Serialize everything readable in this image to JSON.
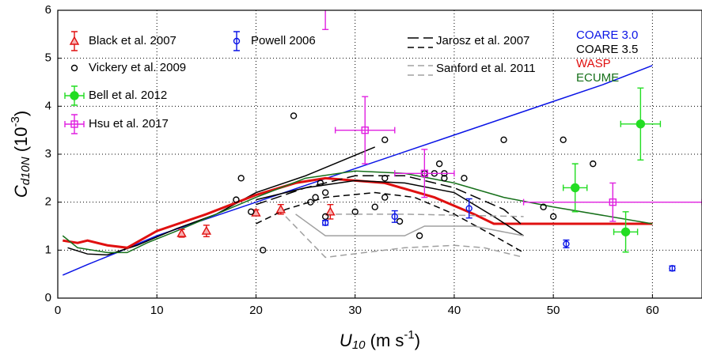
{
  "chart_data": {
    "type": "line",
    "xlabel": {
      "main": "U",
      "sub": "10",
      "unit": " (m s",
      "sup": "-1",
      "close": ")"
    },
    "ylabel": {
      "main": "C",
      "sub": "d10N",
      "unit": " (10",
      "sup": "-3",
      "close": ")"
    },
    "xlim": [
      0,
      65
    ],
    "ylim": [
      0,
      6
    ],
    "xticks": [
      0,
      10,
      20,
      30,
      40,
      50,
      60
    ],
    "yticks": [
      0,
      1,
      2,
      3,
      4,
      5,
      6
    ],
    "grid": true,
    "series": [
      {
        "name": "COARE 3.0",
        "color": "#0a14e6",
        "mark": "line",
        "dash": "solid",
        "x": [
          0.5,
          3,
          6,
          10,
          15,
          20,
          25,
          30,
          35,
          40,
          45,
          50,
          55,
          60
        ],
        "values": [
          0.48,
          0.7,
          0.95,
          1.3,
          1.65,
          2.0,
          2.35,
          2.7,
          3.05,
          3.4,
          3.75,
          4.1,
          4.45,
          4.85
        ]
      },
      {
        "name": "COARE 3.5",
        "color": "#000000",
        "mark": "line",
        "dash": "solid",
        "x": [
          1,
          3,
          5,
          8,
          12,
          16,
          20,
          25,
          32
        ],
        "values": [
          1.05,
          0.92,
          0.9,
          1.1,
          1.45,
          1.75,
          2.2,
          2.55,
          3.15
        ]
      },
      {
        "name": "WASP",
        "color": "#e01010",
        "mark": "line",
        "dash": "thick",
        "x": [
          0.5,
          2,
          3,
          5,
          7,
          10,
          15,
          20,
          24,
          27,
          33,
          38,
          42,
          44,
          60
        ],
        "values": [
          1.2,
          1.15,
          1.2,
          1.1,
          1.05,
          1.4,
          1.75,
          2.15,
          2.4,
          2.5,
          2.4,
          2.1,
          1.75,
          1.55,
          1.55
        ]
      },
      {
        "name": "ECUME",
        "color": "#16701a",
        "mark": "line",
        "dash": "solid",
        "x": [
          0.5,
          2,
          5,
          7,
          9,
          12,
          16,
          20,
          25,
          30,
          35,
          40,
          45,
          50,
          60
        ],
        "values": [
          1.3,
          1.05,
          0.95,
          0.95,
          1.15,
          1.4,
          1.75,
          2.1,
          2.5,
          2.65,
          2.6,
          2.4,
          2.1,
          1.9,
          1.55
        ]
      },
      {
        "name": "Jarosz et al. 2007",
        "color": "#000000",
        "mark": "line",
        "dash": "longdash",
        "x": [
          20,
          25,
          30,
          35,
          40,
          45,
          47
        ],
        "values": [
          1.95,
          2.3,
          2.55,
          2.55,
          2.3,
          1.85,
          1.5
        ]
      },
      {
        "color": "#000000",
        "mark": "line",
        "dash": "dash",
        "x": [
          20,
          23,
          27,
          32,
          36,
          40,
          44,
          47
        ],
        "values": [
          1.55,
          1.85,
          2.1,
          2.2,
          2.1,
          1.75,
          1.3,
          0.95
        ]
      },
      {
        "color": "#000000",
        "mark": "line",
        "dash": "solid",
        "x": [
          20,
          25,
          30,
          35,
          40,
          44,
          47
        ],
        "values": [
          2.05,
          2.3,
          2.45,
          2.4,
          2.2,
          1.7,
          1.3
        ]
      },
      {
        "name": "Sanford et al. 2011",
        "color": "#a0a0a0",
        "mark": "line",
        "dash": "dash",
        "x": [
          23,
          27,
          35,
          40,
          43,
          47
        ],
        "values": [
          1.7,
          0.85,
          1.05,
          1.1,
          1.05,
          0.85
        ]
      },
      {
        "color": "#a0a0a0",
        "mark": "line",
        "dash": "solid",
        "x": [
          24,
          27,
          35,
          37,
          42,
          47
        ],
        "values": [
          1.75,
          1.3,
          1.3,
          1.5,
          1.5,
          1.3
        ]
      },
      {
        "color": "#a0a0a0",
        "mark": "line",
        "dash": "dash",
        "x": [
          27,
          35,
          47
        ],
        "values": [
          1.75,
          1.75,
          1.7
        ]
      },
      {
        "name": "Black et al. 2007",
        "color": "#e01010",
        "mark": "triangle",
        "x": [
          12.5,
          15,
          20,
          22.5,
          27.5
        ],
        "values": [
          1.35,
          1.4,
          1.78,
          1.85,
          1.8
        ],
        "errors": [
          0.08,
          0.12,
          0.06,
          0.1,
          0.15
        ]
      },
      {
        "name": "Vickery et al. 2009",
        "color": "#000000",
        "mark": "circle",
        "x": [
          18.5,
          18,
          19.5,
          20.7,
          23.8,
          25.5,
          26,
          26.5,
          27,
          27,
          30,
          32,
          33,
          33,
          33,
          34.5,
          36.5,
          37,
          38,
          38.5,
          39,
          39,
          41,
          45,
          49,
          50,
          51,
          54
        ],
        "values": [
          2.5,
          2.05,
          1.8,
          1.0,
          3.8,
          2.0,
          2.1,
          2.4,
          1.7,
          2.2,
          1.8,
          1.9,
          3.3,
          2.1,
          2.5,
          1.6,
          1.3,
          2.6,
          2.6,
          2.8,
          2.5,
          2.6,
          2.5,
          3.3,
          1.9,
          1.7,
          3.3,
          2.8
        ]
      },
      {
        "name": "Powell 2006",
        "color": "#0a14e6",
        "mark": "circle",
        "x": [
          27,
          34,
          41.5,
          51.3,
          62
        ],
        "values": [
          1.57,
          1.7,
          1.87,
          1.13,
          0.62
        ],
        "errors": [
          0.05,
          0.12,
          0.2,
          0.08,
          0.05
        ]
      },
      {
        "name": "Bell et al. 2012",
        "color": "#22dd22",
        "mark": "disc",
        "x": [
          52.2,
          57.3,
          58.8
        ],
        "values": [
          2.3,
          1.38,
          3.63
        ],
        "errors": [
          0.5,
          0.42,
          0.75
        ],
        "xerrors": [
          1.2,
          1.2,
          2
        ]
      },
      {
        "name": "Hsu et al. 2017",
        "color": "#e020e0",
        "mark": "square",
        "x": [
          31,
          37,
          56,
          27
        ],
        "values": [
          3.5,
          2.6,
          2.0,
          6.6
        ],
        "errors": [
          0.7,
          0.5,
          0.4,
          1.0
        ],
        "xerrors": [
          3,
          3,
          9,
          3
        ]
      }
    ]
  }
}
